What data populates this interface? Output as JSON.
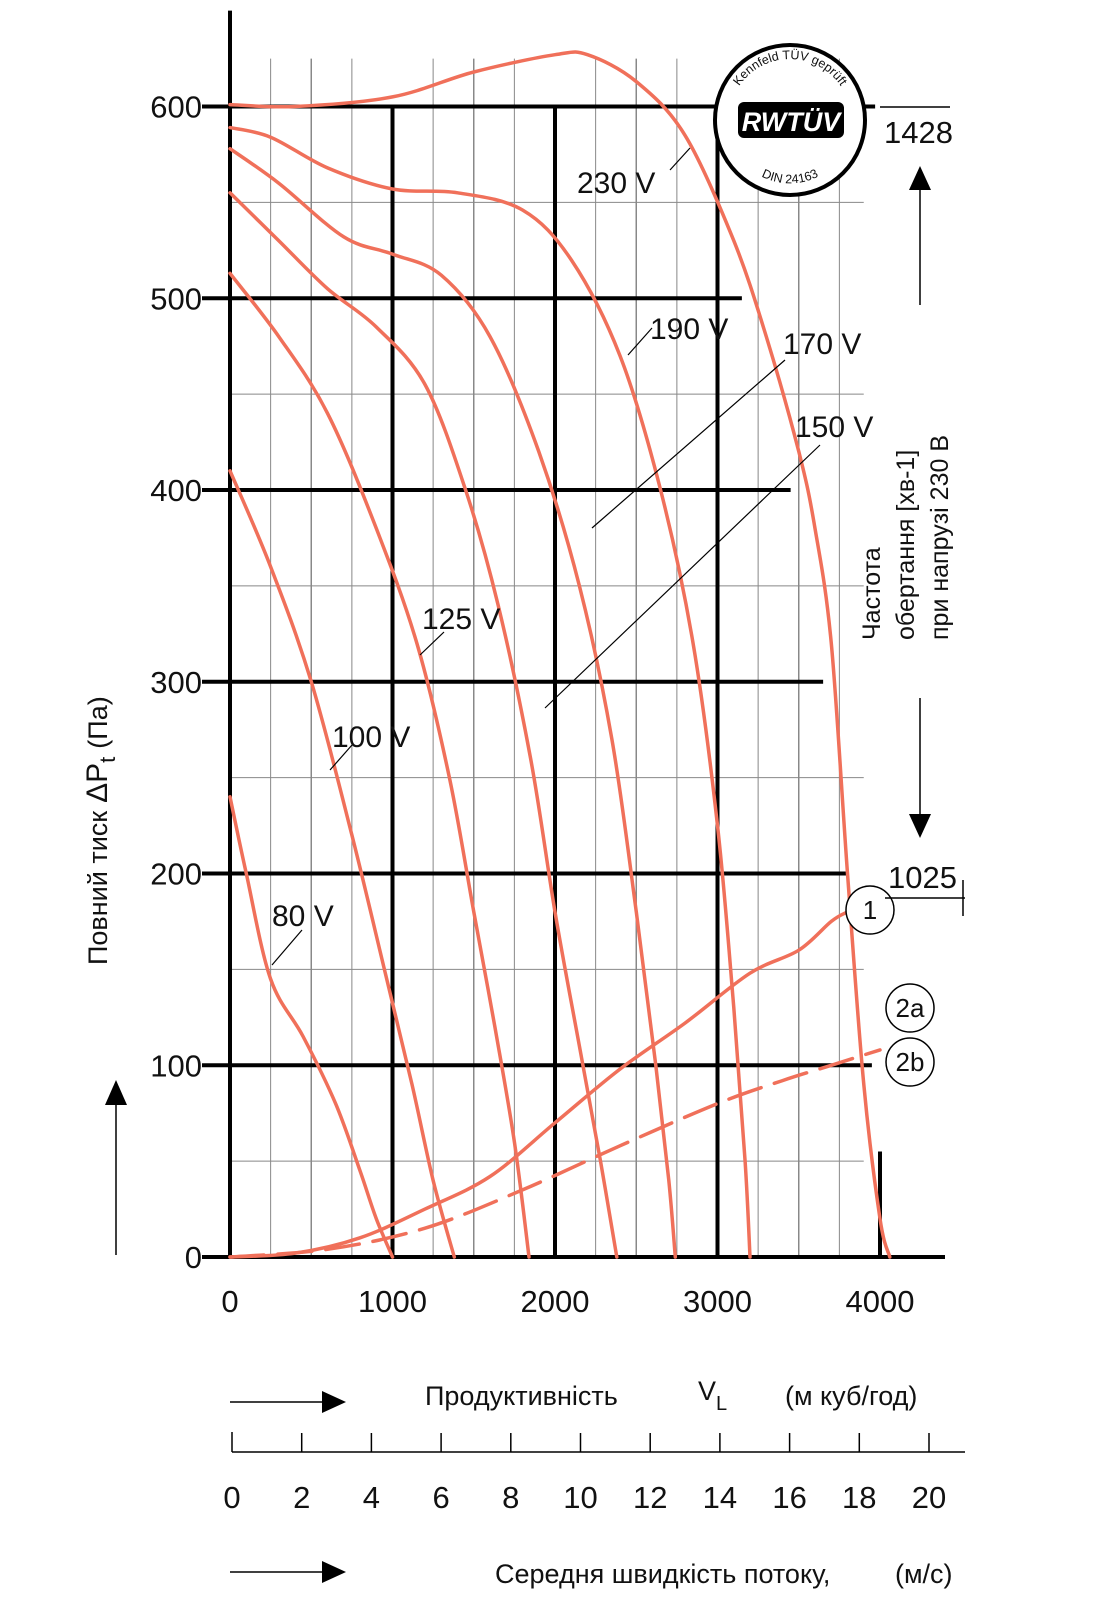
{
  "colors": {
    "curve": "#f0705a",
    "grid_major": "#000000",
    "grid_minor": "#888888",
    "text": "#111111"
  },
  "side_label": {
    "line1": "Частота",
    "line2": "обертання [хв-1]",
    "line3": "при напрузі 230 В"
  },
  "speed_labels": {
    "top": "1428",
    "bottom": "1025"
  },
  "seal": {
    "top_text": "Kennfeld TÜV geprüft",
    "center_text": "RWTÜV",
    "bottom_text": "DIN 24163"
  },
  "flow_axis_line": {
    "label": "Продуктивність",
    "symbol": "V",
    "symbol_sub": "L",
    "unit": "(м куб/год)"
  },
  "velocity_axis": {
    "label": "Середня швидкість потоку,",
    "unit": "(м/с)",
    "ticks": [
      "0",
      "2",
      "4",
      "6",
      "8",
      "10",
      "12",
      "14",
      "16",
      "18",
      "20"
    ]
  },
  "chart_data": {
    "type": "line",
    "xlabel": "Продуктивність VL (м куб/год)",
    "ylabel": "Повний тиск ΔPt (Па)",
    "xlim": [
      0,
      4400
    ],
    "ylim": [
      0,
      650
    ],
    "x_ticks": [
      "0",
      "1000",
      "2000",
      "3000",
      "4000"
    ],
    "y_ticks": [
      "0",
      "100",
      "200",
      "300",
      "400",
      "500",
      "600"
    ],
    "grid": true,
    "curves": [
      {
        "label": "230 V",
        "points": [
          [
            0,
            601
          ],
          [
            400,
            600
          ],
          [
            1000,
            605
          ],
          [
            1500,
            618
          ],
          [
            2000,
            627
          ],
          [
            2200,
            627
          ],
          [
            2500,
            613
          ],
          [
            2800,
            585
          ],
          [
            3100,
            530
          ],
          [
            3300,
            480
          ],
          [
            3500,
            420
          ],
          [
            3600,
            380
          ],
          [
            3700,
            320
          ],
          [
            3800,
            200
          ],
          [
            3900,
            90
          ],
          [
            4000,
            20
          ],
          [
            4060,
            0
          ]
        ]
      },
      {
        "label": "190 V",
        "points": [
          [
            0,
            589
          ],
          [
            250,
            584
          ],
          [
            600,
            568
          ],
          [
            1000,
            557
          ],
          [
            1400,
            555
          ],
          [
            1800,
            546
          ],
          [
            2100,
            520
          ],
          [
            2400,
            470
          ],
          [
            2650,
            400
          ],
          [
            2850,
            320
          ],
          [
            3000,
            225
          ],
          [
            3100,
            130
          ],
          [
            3170,
            50
          ],
          [
            3200,
            0
          ]
        ]
      },
      {
        "label": "170 V",
        "points": [
          [
            0,
            578
          ],
          [
            300,
            560
          ],
          [
            700,
            532
          ],
          [
            1000,
            523
          ],
          [
            1300,
            512
          ],
          [
            1600,
            480
          ],
          [
            1900,
            420
          ],
          [
            2150,
            350
          ],
          [
            2350,
            270
          ],
          [
            2500,
            180
          ],
          [
            2620,
            100
          ],
          [
            2700,
            40
          ],
          [
            2740,
            0
          ]
        ]
      },
      {
        "label": "150 V",
        "points": [
          [
            0,
            555
          ],
          [
            300,
            530
          ],
          [
            600,
            505
          ],
          [
            900,
            485
          ],
          [
            1200,
            455
          ],
          [
            1450,
            400
          ],
          [
            1650,
            340
          ],
          [
            1850,
            260
          ],
          [
            2000,
            180
          ],
          [
            2150,
            110
          ],
          [
            2280,
            50
          ],
          [
            2380,
            0
          ]
        ]
      },
      {
        "label": "125 V",
        "points": [
          [
            0,
            513
          ],
          [
            300,
            480
          ],
          [
            600,
            440
          ],
          [
            900,
            380
          ],
          [
            1150,
            320
          ],
          [
            1350,
            250
          ],
          [
            1500,
            180
          ],
          [
            1630,
            120
          ],
          [
            1750,
            60
          ],
          [
            1840,
            0
          ]
        ]
      },
      {
        "label": "100 V",
        "points": [
          [
            0,
            410
          ],
          [
            250,
            360
          ],
          [
            500,
            300
          ],
          [
            750,
            220
          ],
          [
            950,
            150
          ],
          [
            1120,
            90
          ],
          [
            1250,
            40
          ],
          [
            1380,
            0
          ]
        ]
      },
      {
        "label": "80 V",
        "points": [
          [
            0,
            240
          ],
          [
            100,
            200
          ],
          [
            250,
            145
          ],
          [
            450,
            115
          ],
          [
            650,
            80
          ],
          [
            800,
            45
          ],
          [
            900,
            20
          ],
          [
            1000,
            0
          ]
        ]
      },
      {
        "label": "1",
        "style": "solid",
        "points": [
          [
            0,
            0
          ],
          [
            400,
            2
          ],
          [
            800,
            10
          ],
          [
            1200,
            25
          ],
          [
            1600,
            42
          ],
          [
            2000,
            70
          ],
          [
            2400,
            98
          ],
          [
            2800,
            122
          ],
          [
            3200,
            148
          ],
          [
            3500,
            160
          ],
          [
            3700,
            175
          ],
          [
            3800,
            180
          ]
        ]
      },
      {
        "label": "2a / 2b",
        "style": "dashed",
        "points": [
          [
            0,
            0
          ],
          [
            600,
            4
          ],
          [
            1200,
            15
          ],
          [
            1800,
            35
          ],
          [
            2400,
            58
          ],
          [
            3000,
            80
          ],
          [
            3400,
            92
          ],
          [
            3700,
            100
          ],
          [
            4000,
            108
          ]
        ]
      }
    ],
    "labels": [
      "230 V",
      "190 V",
      "170 V",
      "150 V",
      "125 V",
      "100 V",
      "80 V",
      "1",
      "2a",
      "2b"
    ],
    "axis_titles": {
      "y_main": "Повний тиск",
      "y_symbol": "ΔP",
      "y_sub": "t",
      "y_unit": "(Па)"
    }
  }
}
